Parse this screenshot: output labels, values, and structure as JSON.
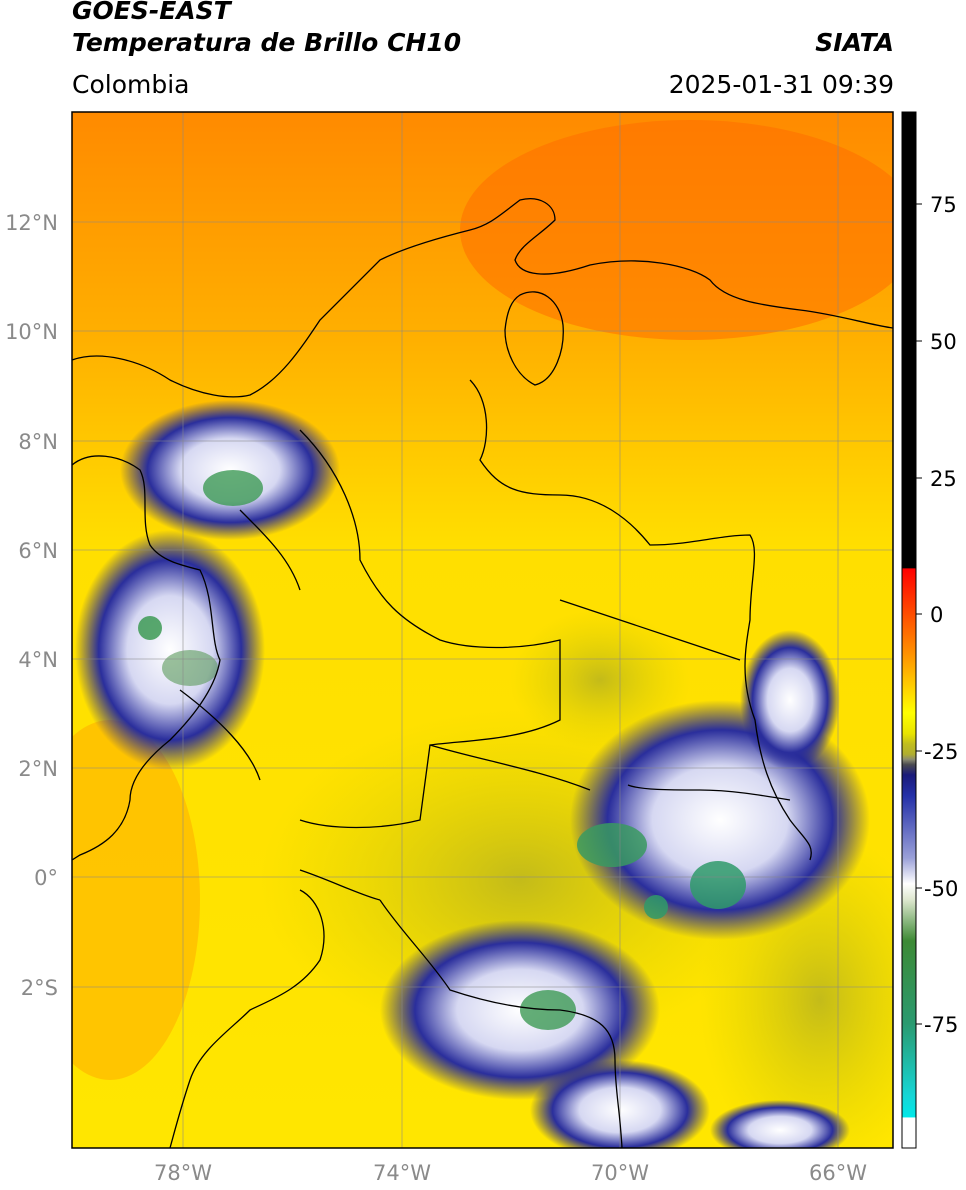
{
  "header": {
    "satellite": "GOES-EAST",
    "product": "Temperatura de Brillo CH10",
    "region": "Colombia",
    "brand": "SIATA",
    "datetime": "2025-01-31 09:39"
  },
  "map": {
    "lat_ticks": [
      "12°N",
      "10°N",
      "8°N",
      "6°N",
      "4°N",
      "2°N",
      "0°",
      "2°S"
    ],
    "lon_ticks": [
      "78°W",
      "74°W",
      "70°W",
      "66°W"
    ],
    "gridlines": true,
    "colors": {
      "warm_top": "#ff7a00",
      "mid": "#ffd400",
      "land": "#ffef00",
      "olive": "#c9c21a",
      "cold_blue": "#1c1f8f",
      "cold_white": "#f2f2ff",
      "cold_green": "#3d9a55",
      "border": "#000000"
    }
  },
  "colorbar": {
    "ticks": [
      "75",
      "50",
      "25",
      "0",
      "-25",
      "-50",
      "-75"
    ]
  }
}
